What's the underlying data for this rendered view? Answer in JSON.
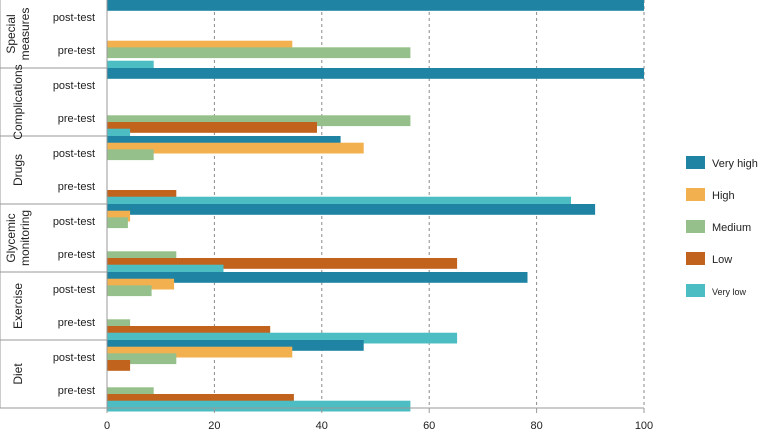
{
  "chart_data": {
    "type": "bar",
    "orientation": "horizontal",
    "grouping": "grouped",
    "xlim": [
      0,
      100
    ],
    "xticks": [
      0,
      20,
      40,
      60,
      80,
      100
    ],
    "grid": "vertical-dashed",
    "legend_position": "right",
    "groups": [
      {
        "label": "Special measures",
        "label_lines": [
          "Special",
          "measures"
        ],
        "tests": [
          "post-test",
          "pre-test"
        ]
      },
      {
        "label": "Complications",
        "label_lines": [
          "Complications"
        ],
        "tests": [
          "post-test",
          "pre-test"
        ]
      },
      {
        "label": "Drugs",
        "label_lines": [
          "Drugs"
        ],
        "tests": [
          "post-test",
          "pre-test"
        ]
      },
      {
        "label": "Glycemic monitoring",
        "label_lines": [
          "Glycemic",
          "monitoring"
        ],
        "tests": [
          "post-test",
          "pre-test"
        ]
      },
      {
        "label": "Exercise",
        "label_lines": [
          "Exercise"
        ],
        "tests": [
          "post-test",
          "pre-test"
        ]
      },
      {
        "label": "Diet",
        "label_lines": [
          "Diet"
        ],
        "tests": [
          "post-test",
          "pre-test"
        ]
      }
    ],
    "series": [
      {
        "name": "Very high",
        "color": "#1f83a3",
        "values": [
          [
            100,
            0
          ],
          [
            100,
            0
          ],
          [
            43.5,
            0
          ],
          [
            90.9,
            0
          ],
          [
            78.3,
            0
          ],
          [
            47.8,
            0
          ]
        ]
      },
      {
        "name": "High",
        "color": "#f3b04f",
        "values": [
          [
            0,
            34.5
          ],
          [
            0,
            0
          ],
          [
            47.8,
            0
          ],
          [
            4.3,
            0
          ],
          [
            12.5,
            0
          ],
          [
            34.5,
            0
          ]
        ]
      },
      {
        "name": "Medium",
        "color": "#96c08b",
        "values": [
          [
            0,
            56.5
          ],
          [
            0,
            56.5
          ],
          [
            8.7,
            0
          ],
          [
            3.9,
            12.9
          ],
          [
            8.3,
            4.3
          ],
          [
            12.9,
            8.7
          ]
        ]
      },
      {
        "name": "Low",
        "color": "#c1621d",
        "values": [
          [
            0,
            0
          ],
          [
            0,
            39.1
          ],
          [
            0,
            12.9
          ],
          [
            0,
            65.2
          ],
          [
            0,
            30.4
          ],
          [
            4.3,
            34.8
          ]
        ]
      },
      {
        "name": "Very low",
        "color": "#4cbec3",
        "values": [
          [
            0,
            8.7
          ],
          [
            0,
            4.3
          ],
          [
            0,
            86.4
          ],
          [
            0,
            21.7
          ],
          [
            0,
            65.2
          ],
          [
            0,
            56.5
          ]
        ]
      }
    ]
  }
}
